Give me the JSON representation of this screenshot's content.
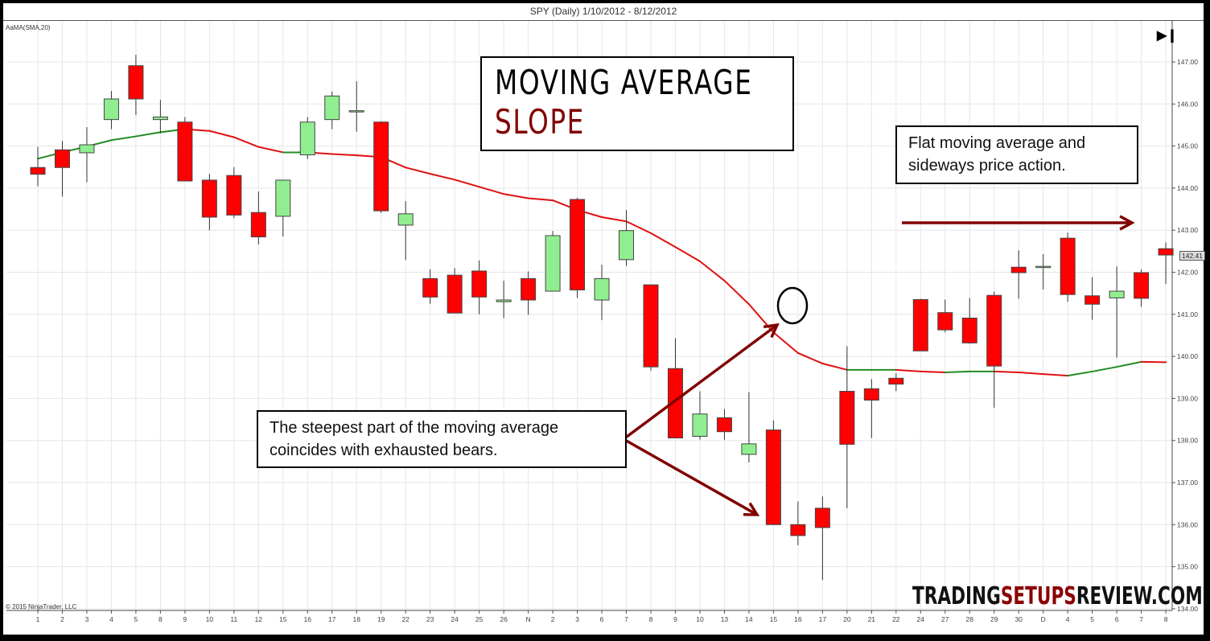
{
  "header": {
    "title": "SPY (Daily)  1/10/2012 - 8/12/2012"
  },
  "indicator_label": "AaMA(SMA,20)",
  "copyright": "© 2015 NinjaTrader, LLC",
  "title_box": {
    "line1": "MOVING AVERAGE",
    "line2": "SLOPE"
  },
  "notes": {
    "flat": "Flat moving average and sideways price action.",
    "steep": "The steepest part of the moving average coincides with exhausted bears."
  },
  "watermark": {
    "part1": "TRADING",
    "part2": "SETUPS",
    "part3": "REVIEW.COM"
  },
  "end_button_icon": "skip-to-end-icon",
  "last_price_tag": "142.41",
  "colors": {
    "up": "#90ee90",
    "down": "#ff0000",
    "ma_up": "#228b22",
    "ma_down": "#e01010",
    "annotation": "#800000"
  },
  "chart_data": {
    "type": "candlestick",
    "title": "SPY (Daily) 1/10/2012 - 8/12/2012",
    "indicator": "SMA 20",
    "ylim": [
      134,
      147.5
    ],
    "yticks": [
      134,
      135,
      136,
      137,
      138,
      139,
      140,
      141,
      142,
      143,
      144,
      145,
      146,
      147
    ],
    "ytick_labels": [
      "134.00",
      "135.00",
      "136.00",
      "137.00",
      "138.00",
      "139.00",
      "140.00",
      "141.00",
      "142.00",
      "143.00",
      "144.00",
      "145.00",
      "146.00",
      "147.00"
    ],
    "categories": [
      "1",
      "2",
      "3",
      "4",
      "5",
      "8",
      "9",
      "10",
      "11",
      "12",
      "15",
      "16",
      "17",
      "18",
      "19",
      "22",
      "23",
      "24",
      "25",
      "26",
      "N",
      "2",
      "3",
      "6",
      "7",
      "8",
      "9",
      "10",
      "13",
      "14",
      "15",
      "16",
      "17",
      "20",
      "21",
      "22",
      "24",
      "27",
      "28",
      "29",
      "30",
      "D",
      "4",
      "5",
      "6",
      "7",
      "8"
    ],
    "ohlc": [
      [
        144.49,
        144.98,
        144.04,
        144.33
      ],
      [
        144.91,
        145.12,
        143.8,
        144.49
      ],
      [
        144.84,
        145.45,
        144.14,
        145.03
      ],
      [
        145.63,
        146.31,
        145.4,
        146.12
      ],
      [
        146.91,
        147.17,
        145.74,
        146.12
      ],
      [
        145.63,
        146.1,
        145.3,
        145.69
      ],
      [
        145.57,
        145.69,
        144.17,
        144.17
      ],
      [
        144.19,
        144.34,
        143.0,
        143.31
      ],
      [
        144.3,
        144.5,
        143.29,
        143.36
      ],
      [
        143.42,
        143.92,
        142.66,
        142.84
      ],
      [
        143.33,
        144.07,
        142.85,
        144.19
      ],
      [
        144.79,
        145.69,
        144.69,
        145.57
      ],
      [
        145.63,
        146.3,
        145.4,
        146.19
      ],
      [
        145.84,
        146.54,
        145.34,
        145.84
      ],
      [
        145.57,
        145.59,
        143.41,
        143.46
      ],
      [
        143.12,
        143.69,
        142.29,
        143.39
      ],
      [
        141.85,
        142.07,
        141.25,
        141.41
      ],
      [
        141.93,
        142.1,
        141.07,
        141.03
      ],
      [
        142.03,
        142.28,
        141.0,
        141.41
      ],
      [
        141.3,
        141.8,
        140.91,
        141.34
      ],
      [
        141.85,
        142.02,
        140.99,
        141.34
      ],
      [
        141.55,
        142.98,
        142.83,
        142.87
      ],
      [
        143.73,
        143.77,
        141.39,
        141.58
      ],
      [
        141.34,
        142.18,
        140.86,
        141.85
      ],
      [
        142.3,
        143.48,
        142.15,
        142.99
      ],
      [
        141.7,
        141.7,
        139.66,
        139.75
      ],
      [
        139.71,
        140.43,
        138.21,
        138.06
      ],
      [
        138.1,
        139.17,
        138.02,
        138.63
      ],
      [
        138.54,
        138.75,
        138.02,
        138.21
      ],
      [
        137.67,
        139.15,
        137.48,
        137.92
      ],
      [
        138.25,
        138.48,
        136.0,
        136.0
      ],
      [
        136.0,
        136.55,
        135.51,
        135.74
      ],
      [
        136.39,
        136.67,
        134.68,
        135.93
      ],
      [
        139.17,
        140.24,
        136.39,
        137.91
      ],
      [
        139.23,
        139.46,
        138.06,
        138.96
      ],
      [
        139.48,
        139.6,
        139.17,
        139.34
      ],
      [
        141.35,
        141.37,
        140.14,
        140.13
      ],
      [
        141.04,
        141.35,
        140.57,
        140.63
      ],
      [
        140.91,
        141.39,
        140.3,
        140.32
      ],
      [
        141.45,
        141.54,
        138.78,
        139.77
      ],
      [
        142.12,
        142.52,
        141.37,
        141.99
      ],
      [
        142.14,
        142.43,
        141.59,
        142.14
      ],
      [
        142.81,
        142.94,
        141.3,
        141.47
      ],
      [
        141.44,
        141.88,
        140.87,
        141.24
      ],
      [
        141.39,
        142.14,
        139.97,
        141.55
      ],
      [
        141.99,
        142.07,
        141.18,
        141.38
      ],
      [
        142.56,
        142.71,
        141.72,
        142.41
      ]
    ],
    "sma20": [
      144.7,
      144.85,
      144.99,
      145.14,
      145.23,
      145.33,
      145.4,
      145.36,
      145.21,
      144.98,
      144.85,
      144.85,
      144.81,
      144.78,
      144.74,
      144.49,
      144.34,
      144.2,
      144.03,
      143.86,
      143.76,
      143.71,
      143.48,
      143.31,
      143.21,
      142.93,
      142.6,
      142.26,
      141.8,
      141.24,
      140.57,
      140.08,
      139.83,
      139.68,
      139.68,
      139.68,
      139.64,
      139.62,
      139.64,
      139.64,
      139.62,
      139.58,
      139.54,
      139.64,
      139.75,
      139.87,
      139.86
    ],
    "annotations": [
      "circle at steepest MA point (bar 32)",
      "arrow to bar 31 low region",
      "horizontal arrow above sideways range"
    ]
  }
}
